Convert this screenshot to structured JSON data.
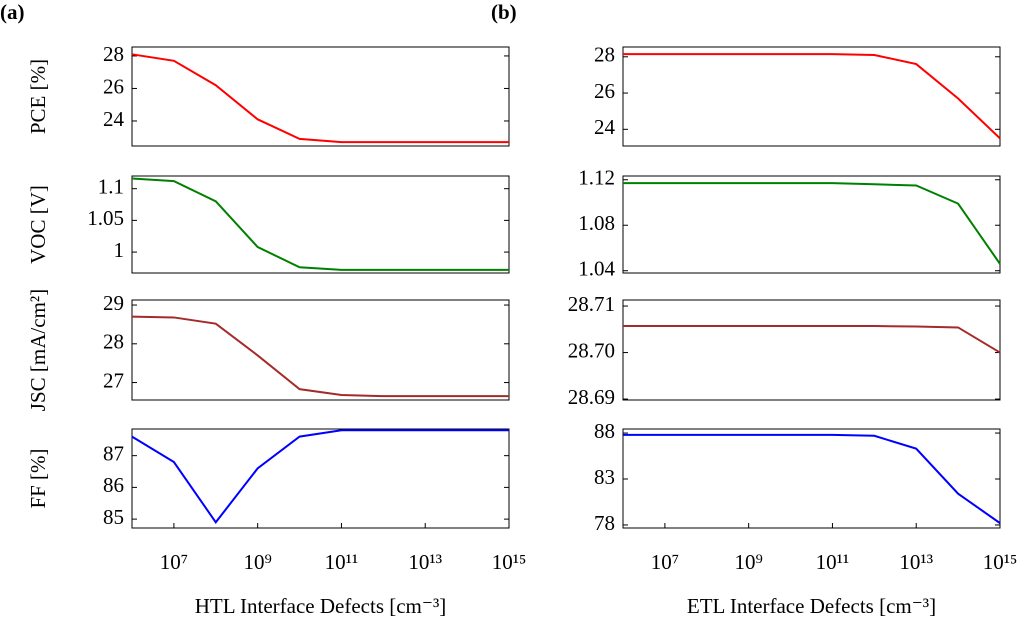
{
  "chart_data": [
    {
      "type": "line",
      "panel_label": "(a)",
      "ylabel": "PCE [%]",
      "xscale": "log",
      "xlim": [
        1000000,
        1000000000000000
      ],
      "ylim": [
        22.46,
        28.55
      ],
      "yticks": [
        24,
        26,
        28
      ],
      "x": [
        1000000,
        10000000,
        100000000,
        1000000000,
        10000000000,
        100000000000,
        1000000000000,
        10000000000000,
        100000000000000,
        1000000000000000
      ],
      "color": "#ff0000",
      "values": [
        28.1,
        27.7,
        26.2,
        24.1,
        22.9,
        22.7,
        22.7,
        22.7,
        22.7,
        22.7
      ]
    },
    {
      "type": "line",
      "ylabel": "VOC [V]",
      "xscale": "log",
      "xlim": [
        1000000,
        1000000000000000
      ],
      "ylim": [
        0.967,
        1.12
      ],
      "yticks": [
        1,
        1.05,
        1.1
      ],
      "x": [
        1000000,
        10000000,
        100000000,
        1000000000,
        10000000000,
        100000000000,
        1000000000000,
        10000000000000,
        100000000000000,
        1000000000000000
      ],
      "color": "#008000",
      "values": [
        1.116,
        1.112,
        1.08,
        1.008,
        0.976,
        0.972,
        0.972,
        0.972,
        0.972,
        0.972
      ]
    },
    {
      "type": "line",
      "ylabel": "JSC [mA/cm²]",
      "xscale": "log",
      "xlim": [
        1000000,
        1000000000000000
      ],
      "ylim": [
        26.55,
        29.13
      ],
      "yticks": [
        27,
        28,
        29
      ],
      "x": [
        1000000,
        10000000,
        100000000,
        1000000000,
        10000000000,
        100000000000,
        1000000000000,
        10000000000000,
        100000000000000,
        1000000000000000
      ],
      "color": "#a52a2a",
      "values": [
        28.7,
        28.68,
        28.52,
        27.7,
        26.83,
        26.68,
        26.65,
        26.65,
        26.65,
        26.65
      ]
    },
    {
      "type": "line",
      "ylabel": "FF [%]",
      "xlabel": "HTL Interface Defects [cm⁻³]",
      "xscale": "log",
      "xlim": [
        1000000,
        1000000000000000
      ],
      "ylim": [
        84.72,
        87.84
      ],
      "yticks": [
        85,
        86,
        87
      ],
      "xticks": [
        {
          "value": 10000000,
          "label": "10⁷"
        },
        {
          "value": 1000000000,
          "label": "10⁹"
        },
        {
          "value": 100000000000,
          "label": "10¹¹"
        },
        {
          "value": 10000000000000,
          "label": "10¹³"
        },
        {
          "value": 1000000000000000,
          "label": "10¹⁵"
        }
      ],
      "x": [
        1000000,
        10000000,
        100000000,
        1000000000,
        10000000000,
        100000000000,
        1000000000000,
        10000000000000,
        100000000000000,
        1000000000000000
      ],
      "color": "#0000ff",
      "values": [
        87.6,
        86.8,
        84.9,
        86.6,
        87.6,
        87.8,
        87.8,
        87.8,
        87.8,
        87.8
      ]
    },
    {
      "type": "line",
      "panel_label": "(b)",
      "xscale": "log",
      "xlim": [
        1000000,
        1000000000000000
      ],
      "ylim": [
        23.08,
        28.54
      ],
      "yticks": [
        24,
        26,
        28
      ],
      "x": [
        1000000,
        10000000,
        100000000,
        1000000000,
        10000000000,
        100000000000,
        1000000000000,
        10000000000000,
        100000000000000,
        1000000000000000
      ],
      "color": "#ff0000",
      "values": [
        28.15,
        28.15,
        28.15,
        28.15,
        28.15,
        28.15,
        28.1,
        27.6,
        25.7,
        23.5
      ]
    },
    {
      "type": "line",
      "xscale": "log",
      "xlim": [
        1000000,
        1000000000000000
      ],
      "ylim": [
        1.038,
        1.1233
      ],
      "yticks": [
        1.04,
        1.08,
        1.12
      ],
      "x": [
        1000000,
        10000000,
        100000000,
        1000000000,
        10000000000,
        100000000000,
        1000000000000,
        10000000000000,
        100000000000000,
        1000000000000000
      ],
      "color": "#008000",
      "values": [
        1.117,
        1.117,
        1.117,
        1.117,
        1.117,
        1.117,
        1.116,
        1.115,
        1.099,
        1.046
      ]
    },
    {
      "type": "line",
      "xscale": "log",
      "xlim": [
        1000000,
        1000000000000000
      ],
      "ylim": [
        28.6898,
        28.7113
      ],
      "yticks": [
        28.69,
        {
          "value": 28.7,
          "label": "28.70"
        },
        28.71
      ],
      "x": [
        1000000,
        10000000,
        100000000,
        1000000000,
        10000000000,
        100000000000,
        1000000000000,
        10000000000000,
        100000000000000,
        1000000000000000
      ],
      "color": "#a52a2a",
      "values": [
        28.7057,
        28.7057,
        28.7057,
        28.7057,
        28.7057,
        28.7057,
        28.7057,
        28.7056,
        28.7054,
        28.7
      ]
    },
    {
      "type": "line",
      "xlabel": "ETL Interface Defects [cm⁻³]",
      "xscale": "log",
      "xlim": [
        1000000,
        1000000000000000
      ],
      "ylim": [
        77.67,
        88.44
      ],
      "yticks": [
        78,
        83,
        88
      ],
      "xticks": [
        {
          "value": 10000000,
          "label": "10⁷"
        },
        {
          "value": 1000000000,
          "label": "10⁹"
        },
        {
          "value": 100000000000,
          "label": "10¹¹"
        },
        {
          "value": 10000000000000,
          "label": "10¹³"
        },
        {
          "value": 1000000000000000,
          "label": "10¹⁵"
        }
      ],
      "x": [
        1000000,
        10000000,
        100000000,
        1000000000,
        10000000000,
        100000000000,
        1000000000000,
        10000000000000,
        100000000000000,
        1000000000000000
      ],
      "color": "#0000ff",
      "values": [
        87.8,
        87.8,
        87.8,
        87.8,
        87.8,
        87.8,
        87.7,
        86.3,
        81.4,
        78.2
      ]
    }
  ]
}
